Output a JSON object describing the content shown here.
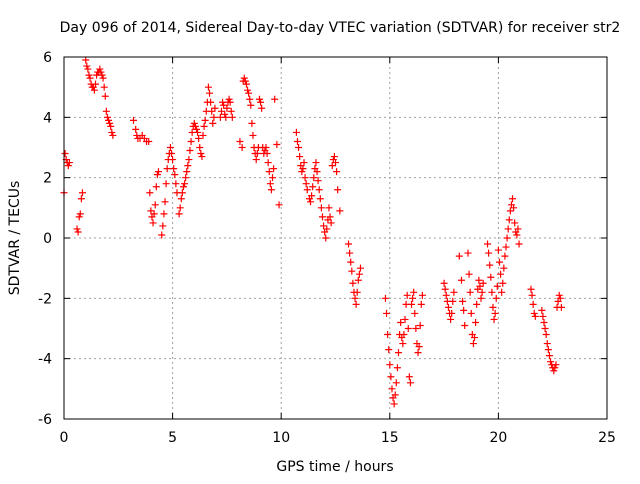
{
  "chart_data": {
    "type": "scatter",
    "title": "Day 096 of 2014, Sidereal Day-to-day VTEC variation (SDTVAR) for receiver str2",
    "xlabel": "GPS time / hours",
    "ylabel": "SDTVAR / TECUs",
    "xlim": [
      0,
      25
    ],
    "ylim": [
      -6,
      6
    ],
    "xticks": [
      0,
      5,
      10,
      15,
      20,
      25
    ],
    "yticks": [
      -6,
      -4,
      -2,
      0,
      2,
      4,
      6
    ],
    "xtick_labels": [
      "0",
      "5",
      "10",
      "15",
      "20",
      "25"
    ],
    "ytick_labels": [
      "-6",
      "-4",
      "-2",
      "0",
      "2",
      "4",
      "6"
    ],
    "grid": true,
    "legend": "none",
    "marker": "plus",
    "series": [
      {
        "color": "#ff0000",
        "points": [
          [
            0.0,
            1.5
          ],
          [
            0.05,
            2.8
          ],
          [
            0.1,
            2.6
          ],
          [
            0.15,
            2.5
          ],
          [
            0.2,
            2.4
          ],
          [
            0.25,
            2.5
          ],
          [
            0.6,
            0.3
          ],
          [
            0.65,
            0.2
          ],
          [
            0.7,
            0.7
          ],
          [
            0.75,
            0.8
          ],
          [
            0.8,
            1.3
          ],
          [
            0.85,
            1.5
          ],
          [
            1.0,
            5.9
          ],
          [
            1.05,
            5.7
          ],
          [
            1.1,
            5.6
          ],
          [
            1.15,
            5.4
          ],
          [
            1.2,
            5.3
          ],
          [
            1.25,
            5.1
          ],
          [
            1.3,
            5.0
          ],
          [
            1.35,
            5.0
          ],
          [
            1.4,
            4.9
          ],
          [
            1.45,
            5.1
          ],
          [
            1.5,
            5.4
          ],
          [
            1.55,
            5.5
          ],
          [
            1.6,
            5.5
          ],
          [
            1.65,
            5.6
          ],
          [
            1.7,
            5.5
          ],
          [
            1.75,
            5.4
          ],
          [
            1.8,
            5.3
          ],
          [
            1.85,
            5.0
          ],
          [
            1.9,
            4.7
          ],
          [
            1.95,
            4.2
          ],
          [
            2.0,
            4.0
          ],
          [
            2.05,
            3.9
          ],
          [
            2.1,
            3.8
          ],
          [
            2.15,
            3.7
          ],
          [
            2.2,
            3.5
          ],
          [
            2.25,
            3.4
          ],
          [
            3.2,
            3.9
          ],
          [
            3.3,
            3.6
          ],
          [
            3.35,
            3.4
          ],
          [
            3.4,
            3.3
          ],
          [
            3.5,
            3.3
          ],
          [
            3.6,
            3.4
          ],
          [
            3.7,
            3.3
          ],
          [
            3.8,
            3.2
          ],
          [
            3.9,
            3.2
          ],
          [
            3.95,
            1.5
          ],
          [
            4.0,
            0.9
          ],
          [
            4.05,
            0.7
          ],
          [
            4.1,
            0.5
          ],
          [
            4.15,
            0.8
          ],
          [
            4.2,
            1.1
          ],
          [
            4.25,
            1.7
          ],
          [
            4.3,
            2.1
          ],
          [
            4.35,
            2.2
          ],
          [
            4.5,
            0.1
          ],
          [
            4.55,
            0.4
          ],
          [
            4.6,
            0.8
          ],
          [
            4.65,
            1.2
          ],
          [
            4.7,
            1.8
          ],
          [
            4.75,
            2.3
          ],
          [
            4.8,
            2.6
          ],
          [
            4.85,
            2.8
          ],
          [
            4.9,
            3.0
          ],
          [
            4.95,
            2.8
          ],
          [
            5.0,
            2.6
          ],
          [
            5.05,
            2.3
          ],
          [
            5.1,
            2.1
          ],
          [
            5.15,
            1.8
          ],
          [
            5.2,
            1.5
          ],
          [
            5.3,
            0.8
          ],
          [
            5.35,
            1.0
          ],
          [
            5.4,
            1.3
          ],
          [
            5.45,
            1.5
          ],
          [
            5.5,
            1.7
          ],
          [
            5.55,
            1.8
          ],
          [
            5.6,
            2.0
          ],
          [
            5.65,
            2.2
          ],
          [
            5.7,
            2.4
          ],
          [
            5.75,
            2.6
          ],
          [
            5.8,
            2.9
          ],
          [
            5.85,
            3.2
          ],
          [
            5.9,
            3.5
          ],
          [
            5.95,
            3.7
          ],
          [
            6.0,
            3.8
          ],
          [
            6.05,
            3.7
          ],
          [
            6.1,
            3.6
          ],
          [
            6.15,
            3.5
          ],
          [
            6.2,
            3.3
          ],
          [
            6.25,
            3.0
          ],
          [
            6.3,
            2.8
          ],
          [
            6.35,
            2.7
          ],
          [
            6.4,
            3.4
          ],
          [
            6.45,
            3.7
          ],
          [
            6.5,
            3.9
          ],
          [
            6.55,
            4.2
          ],
          [
            6.6,
            4.5
          ],
          [
            6.65,
            5.0
          ],
          [
            6.7,
            4.8
          ],
          [
            6.75,
            4.5
          ],
          [
            6.8,
            4.2
          ],
          [
            6.85,
            3.8
          ],
          [
            6.9,
            4.0
          ],
          [
            6.95,
            4.3
          ],
          [
            7.2,
            4.0
          ],
          [
            7.25,
            4.2
          ],
          [
            7.3,
            4.5
          ],
          [
            7.35,
            4.4
          ],
          [
            7.4,
            4.1
          ],
          [
            7.45,
            4.0
          ],
          [
            7.5,
            4.3
          ],
          [
            7.55,
            4.5
          ],
          [
            7.6,
            4.6
          ],
          [
            7.65,
            4.5
          ],
          [
            7.7,
            4.2
          ],
          [
            7.75,
            4.0
          ],
          [
            8.1,
            3.2
          ],
          [
            8.2,
            3.0
          ],
          [
            8.25,
            5.2
          ],
          [
            8.3,
            5.3
          ],
          [
            8.35,
            5.2
          ],
          [
            8.4,
            5.1
          ],
          [
            8.45,
            4.9
          ],
          [
            8.5,
            4.8
          ],
          [
            8.55,
            4.6
          ],
          [
            8.6,
            4.4
          ],
          [
            8.65,
            3.8
          ],
          [
            8.7,
            3.4
          ],
          [
            8.75,
            3.0
          ],
          [
            8.8,
            2.8
          ],
          [
            8.85,
            2.6
          ],
          [
            8.9,
            2.8
          ],
          [
            8.95,
            3.0
          ],
          [
            9.0,
            4.6
          ],
          [
            9.05,
            4.5
          ],
          [
            9.1,
            4.3
          ],
          [
            9.15,
            3.0
          ],
          [
            9.2,
            2.8
          ],
          [
            9.25,
            2.9
          ],
          [
            9.3,
            3.0
          ],
          [
            9.35,
            2.8
          ],
          [
            9.4,
            2.5
          ],
          [
            9.45,
            2.2
          ],
          [
            9.5,
            1.8
          ],
          [
            9.55,
            1.6
          ],
          [
            9.6,
            2.0
          ],
          [
            9.65,
            2.3
          ],
          [
            9.7,
            4.6
          ],
          [
            9.8,
            3.1
          ],
          [
            9.9,
            1.1
          ],
          [
            10.7,
            3.5
          ],
          [
            10.75,
            3.2
          ],
          [
            10.8,
            3.0
          ],
          [
            10.85,
            2.7
          ],
          [
            10.9,
            2.4
          ],
          [
            10.95,
            2.2
          ],
          [
            11.0,
            2.3
          ],
          [
            11.05,
            2.5
          ],
          [
            11.1,
            2.0
          ],
          [
            11.15,
            1.8
          ],
          [
            11.2,
            1.6
          ],
          [
            11.3,
            1.3
          ],
          [
            11.35,
            1.2
          ],
          [
            11.4,
            1.4
          ],
          [
            11.45,
            1.7
          ],
          [
            11.5,
            2.0
          ],
          [
            11.55,
            2.3
          ],
          [
            11.6,
            2.5
          ],
          [
            11.65,
            2.2
          ],
          [
            11.7,
            1.9
          ],
          [
            11.75,
            1.6
          ],
          [
            11.8,
            1.3
          ],
          [
            11.85,
            1.0
          ],
          [
            11.9,
            0.7
          ],
          [
            11.95,
            0.4
          ],
          [
            12.0,
            0.2
          ],
          [
            12.05,
            0.0
          ],
          [
            12.1,
            0.3
          ],
          [
            12.15,
            0.6
          ],
          [
            12.2,
            1.0
          ],
          [
            12.25,
            0.7
          ],
          [
            12.3,
            0.5
          ],
          [
            12.35,
            2.4
          ],
          [
            12.4,
            2.6
          ],
          [
            12.45,
            2.7
          ],
          [
            12.5,
            2.5
          ],
          [
            12.55,
            2.2
          ],
          [
            12.6,
            1.6
          ],
          [
            12.7,
            0.9
          ],
          [
            13.1,
            -0.2
          ],
          [
            13.15,
            -0.5
          ],
          [
            13.2,
            -0.8
          ],
          [
            13.25,
            -1.1
          ],
          [
            13.3,
            -1.5
          ],
          [
            13.35,
            -1.8
          ],
          [
            13.4,
            -2.0
          ],
          [
            13.45,
            -2.2
          ],
          [
            13.5,
            -1.8
          ],
          [
            13.55,
            -1.4
          ],
          [
            13.6,
            -1.2
          ],
          [
            13.65,
            -1.0
          ],
          [
            14.8,
            -2.0
          ],
          [
            14.85,
            -2.5
          ],
          [
            14.9,
            -3.2
          ],
          [
            14.95,
            -3.7
          ],
          [
            15.0,
            -4.2
          ],
          [
            15.05,
            -4.6
          ],
          [
            15.1,
            -5.0
          ],
          [
            15.15,
            -5.3
          ],
          [
            15.2,
            -5.5
          ],
          [
            15.25,
            -5.2
          ],
          [
            15.3,
            -4.8
          ],
          [
            15.35,
            -4.3
          ],
          [
            15.4,
            -3.8
          ],
          [
            15.45,
            -3.2
          ],
          [
            15.5,
            -2.8
          ],
          [
            15.55,
            -3.3
          ],
          [
            15.6,
            -3.5
          ],
          [
            15.65,
            -3.2
          ],
          [
            15.7,
            -2.7
          ],
          [
            15.75,
            -2.2
          ],
          [
            15.8,
            -1.9
          ],
          [
            15.85,
            -3.0
          ],
          [
            15.9,
            -4.6
          ],
          [
            15.95,
            -4.8
          ],
          [
            16.0,
            -2.2
          ],
          [
            16.05,
            -2.0
          ],
          [
            16.1,
            -1.8
          ],
          [
            16.15,
            -2.5
          ],
          [
            16.2,
            -3.0
          ],
          [
            16.25,
            -3.5
          ],
          [
            16.3,
            -3.8
          ],
          [
            16.35,
            -3.6
          ],
          [
            16.4,
            -2.9
          ],
          [
            16.45,
            -2.2
          ],
          [
            16.5,
            -1.9
          ],
          [
            17.5,
            -1.5
          ],
          [
            17.55,
            -1.7
          ],
          [
            17.6,
            -1.9
          ],
          [
            17.65,
            -2.1
          ],
          [
            17.7,
            -2.3
          ],
          [
            17.75,
            -2.5
          ],
          [
            17.8,
            -2.7
          ],
          [
            17.85,
            -2.5
          ],
          [
            17.9,
            -2.1
          ],
          [
            17.95,
            -1.8
          ],
          [
            18.2,
            -0.6
          ],
          [
            18.3,
            -1.4
          ],
          [
            18.35,
            -2.1
          ],
          [
            18.4,
            -2.4
          ],
          [
            18.45,
            -2.9
          ],
          [
            18.6,
            -0.5
          ],
          [
            18.65,
            -1.2
          ],
          [
            18.7,
            -1.8
          ],
          [
            18.75,
            -2.5
          ],
          [
            18.8,
            -3.2
          ],
          [
            18.85,
            -3.5
          ],
          [
            18.9,
            -3.3
          ],
          [
            18.95,
            -2.8
          ],
          [
            19.0,
            -2.2
          ],
          [
            19.05,
            -1.7
          ],
          [
            19.1,
            -1.4
          ],
          [
            19.15,
            -1.6
          ],
          [
            19.2,
            -2.0
          ],
          [
            19.25,
            -1.8
          ],
          [
            19.3,
            -1.5
          ],
          [
            19.5,
            -0.2
          ],
          [
            19.55,
            -0.5
          ],
          [
            19.6,
            -0.9
          ],
          [
            19.65,
            -1.3
          ],
          [
            19.7,
            -1.8
          ],
          [
            19.75,
            -2.3
          ],
          [
            19.8,
            -2.7
          ],
          [
            19.85,
            -2.5
          ],
          [
            19.9,
            -2.0
          ],
          [
            19.95,
            -1.6
          ],
          [
            20.0,
            -0.4
          ],
          [
            20.05,
            -0.8
          ],
          [
            20.1,
            -1.2
          ],
          [
            20.15,
            -1.8
          ],
          [
            20.2,
            -1.5
          ],
          [
            20.25,
            -1.0
          ],
          [
            20.3,
            -0.6
          ],
          [
            20.35,
            -0.3
          ],
          [
            20.4,
            0.0
          ],
          [
            20.45,
            0.3
          ],
          [
            20.5,
            0.6
          ],
          [
            20.55,
            0.9
          ],
          [
            20.6,
            1.1
          ],
          [
            20.65,
            1.3
          ],
          [
            20.7,
            1.0
          ],
          [
            20.75,
            0.5
          ],
          [
            20.8,
            0.2
          ],
          [
            20.85,
            0.1
          ],
          [
            20.9,
            0.3
          ],
          [
            20.95,
            -0.2
          ],
          [
            21.5,
            -1.7
          ],
          [
            21.55,
            -1.9
          ],
          [
            21.6,
            -2.2
          ],
          [
            21.65,
            -2.5
          ],
          [
            21.7,
            -2.6
          ],
          [
            22.0,
            -2.4
          ],
          [
            22.05,
            -2.6
          ],
          [
            22.1,
            -2.8
          ],
          [
            22.15,
            -3.0
          ],
          [
            22.2,
            -3.2
          ],
          [
            22.25,
            -3.5
          ],
          [
            22.3,
            -3.7
          ],
          [
            22.35,
            -3.9
          ],
          [
            22.4,
            -4.1
          ],
          [
            22.45,
            -4.2
          ],
          [
            22.5,
            -4.3
          ],
          [
            22.55,
            -4.4
          ],
          [
            22.6,
            -4.3
          ],
          [
            22.65,
            -4.2
          ],
          [
            22.7,
            -2.3
          ],
          [
            22.75,
            -2.1
          ],
          [
            22.8,
            -1.9
          ],
          [
            22.85,
            -2.0
          ],
          [
            22.9,
            -2.3
          ]
        ]
      }
    ]
  }
}
